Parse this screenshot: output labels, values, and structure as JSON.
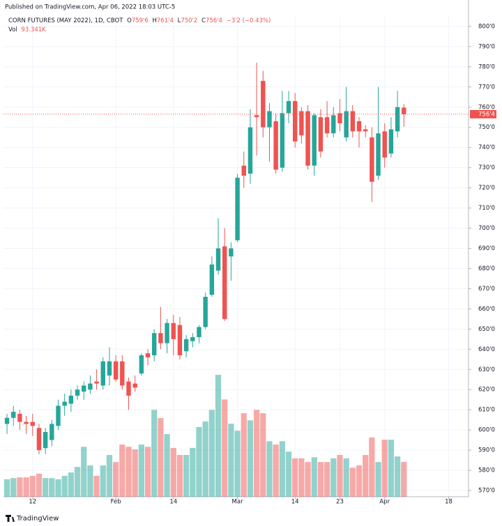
{
  "published": "Published on TradingView.com, Apr 06, 2022 18:03 UTC-5",
  "footer": "TradingView",
  "chart_data": {
    "type": "candlestick",
    "header": {
      "symbol": "CORN FUTURES (MAY 2022), 1D, CBOT",
      "ohlc": [
        {
          "key": "O",
          "value": "759'6"
        },
        {
          "key": "H",
          "value": "761'4"
        },
        {
          "key": "L",
          "value": "750'2"
        },
        {
          "key": "C",
          "value": "756'4"
        }
      ],
      "change": "−3'2 (−0.43%)",
      "vol_key": "Vol",
      "vol_value": "93.341K"
    },
    "x": [
      0,
      1,
      2,
      3,
      4,
      5,
      6,
      7,
      8,
      9,
      10,
      11,
      12,
      13,
      14,
      15,
      16,
      17,
      18,
      19,
      20,
      21,
      22,
      23,
      24,
      25,
      26,
      27,
      28,
      29,
      30,
      31,
      32,
      33,
      34,
      35,
      36,
      37,
      38,
      39,
      40,
      41,
      42,
      43,
      44,
      45,
      46,
      47,
      48,
      49,
      50,
      51,
      52,
      53,
      54,
      55,
      56,
      57,
      58,
      59,
      60,
      61,
      62
    ],
    "open": [
      603,
      606,
      608,
      604,
      604,
      601,
      591,
      595,
      602,
      612,
      613,
      617,
      619,
      620,
      624,
      622,
      627,
      634,
      634,
      624,
      623,
      628,
      638,
      637,
      648,
      643,
      653,
      652,
      639,
      644,
      646,
      651,
      667,
      679,
      691,
      686,
      694,
      731,
      727,
      756,
      773,
      750,
      753,
      730,
      757,
      763,
      758,
      758,
      731,
      755,
      755,
      747,
      757,
      745,
      758,
      753,
      749,
      745,
      726,
      748,
      737,
      748,
      759.75
    ],
    "high": [
      608,
      612,
      610,
      607,
      608,
      603,
      601,
      605,
      615,
      618,
      620,
      622,
      624,
      627,
      630,
      636,
      641,
      637,
      637,
      626,
      627,
      638,
      640,
      650,
      661,
      655,
      657,
      656,
      647,
      648,
      652,
      668,
      686,
      705,
      700,
      693,
      727,
      738,
      759,
      782,
      778,
      762,
      757,
      768,
      768,
      767,
      760,
      761,
      757,
      759,
      763,
      760,
      764,
      770,
      761,
      755,
      751,
      750,
      770,
      752,
      755,
      768,
      761.5
    ],
    "low": [
      598,
      602,
      600,
      598,
      597,
      588,
      588,
      592,
      600,
      607,
      609,
      615,
      615,
      618,
      620,
      620,
      622,
      624,
      620,
      610,
      619,
      627,
      632,
      634,
      640,
      638,
      637,
      635,
      636,
      641,
      643,
      650,
      666,
      677,
      654,
      674,
      693,
      720,
      722,
      736,
      745,
      733,
      727,
      728,
      752,
      740,
      742,
      729,
      726,
      735,
      745,
      745,
      748,
      743,
      745,
      740,
      745,
      713,
      724,
      730,
      735,
      745,
      750.25
    ],
    "close": [
      606,
      609,
      604,
      603,
      602,
      590,
      599,
      603,
      612,
      614,
      617,
      620,
      622,
      623,
      623,
      634,
      634,
      625,
      622,
      617,
      621,
      637,
      636,
      648,
      643,
      653,
      645,
      637,
      645,
      646,
      651,
      666,
      682,
      690,
      655,
      690,
      725,
      726,
      750,
      755,
      750,
      758,
      729,
      757,
      763,
      743,
      746,
      731,
      756,
      738,
      747,
      756,
      752,
      758,
      748,
      748,
      748,
      723,
      747,
      735,
      749,
      760,
      756.5
    ],
    "volume": [
      47,
      50,
      52,
      52,
      56,
      62,
      50,
      50,
      47,
      56,
      65,
      80,
      134,
      84,
      56,
      84,
      112,
      93,
      140,
      134,
      127,
      140,
      134,
      233,
      211,
      168,
      131,
      112,
      112,
      131,
      187,
      202,
      233,
      327,
      261,
      196,
      177,
      224,
      205,
      233,
      224,
      149,
      140,
      149,
      121,
      103,
      103,
      93,
      106,
      93,
      93,
      103,
      112,
      103,
      78,
      84,
      112,
      159,
      93,
      153,
      153,
      108,
      93.341
    ],
    "last_price": {
      "value": 756.5,
      "label": "756'4"
    },
    "xlim": [
      -0.55,
      72.1
    ],
    "xticks": [
      {
        "value": 4,
        "label": "12"
      },
      {
        "value": 17,
        "label": "Feb"
      },
      {
        "value": 26,
        "label": "14"
      },
      {
        "value": 36,
        "label": "Mar"
      },
      {
        "value": 45,
        "label": "14"
      },
      {
        "value": 52,
        "label": "23"
      },
      {
        "value": 59,
        "label": "Apr"
      },
      {
        "value": 69,
        "label": "18"
      }
    ],
    "ylim": [
      566.9,
      805.5
    ],
    "yticks": [
      {
        "value": 570,
        "label": "570'0"
      },
      {
        "value": 580,
        "label": "580'0"
      },
      {
        "value": 590,
        "label": "590'0"
      },
      {
        "value": 600,
        "label": "600'0"
      },
      {
        "value": 610,
        "label": "610'0"
      },
      {
        "value": 620,
        "label": "620'0"
      },
      {
        "value": 630,
        "label": "630'0"
      },
      {
        "value": 640,
        "label": "640'0"
      },
      {
        "value": 650,
        "label": "650'0"
      },
      {
        "value": 660,
        "label": "660'0"
      },
      {
        "value": 670,
        "label": "670'0"
      },
      {
        "value": 680,
        "label": "680'0"
      },
      {
        "value": 690,
        "label": "690'0"
      },
      {
        "value": 700,
        "label": "700'0"
      },
      {
        "value": 710,
        "label": "710'0"
      },
      {
        "value": 720,
        "label": "720'0"
      },
      {
        "value": 730,
        "label": "730'0"
      },
      {
        "value": 740,
        "label": "740'0"
      },
      {
        "value": 750,
        "label": "750'0"
      },
      {
        "value": 760,
        "label": "760'0"
      },
      {
        "value": 770,
        "label": "770'0"
      },
      {
        "value": 780,
        "label": "780'0"
      },
      {
        "value": 790,
        "label": "790'0"
      },
      {
        "value": 800,
        "label": "800'0"
      }
    ],
    "grid": true,
    "up_color": "#26a69a",
    "down_color": "#ef5350"
  }
}
